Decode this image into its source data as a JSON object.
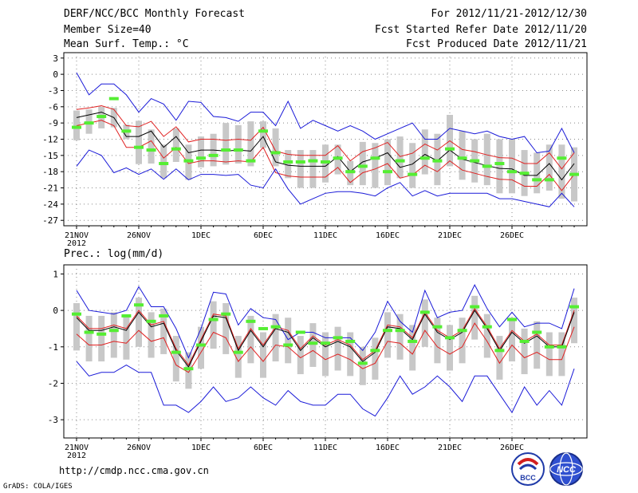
{
  "header": {
    "title": "DERF/NCC/BCC Monthly Forecast",
    "member_size": "Member Size=40",
    "variable": "Mean Surf. Temp.: °C",
    "period": "For 2012/11/21-2012/12/30",
    "start_date": "Fcst Started Refer Date 2012/11/20",
    "produced_date": "Fcst Produced Date 2012/11/21"
  },
  "footer": {
    "url": "http://cmdp.ncc.cma.gov.cn",
    "grads": "GrADS: COLA/IGES",
    "bcc_logo_text": "BCC",
    "ncc_logo_text": "NCC"
  },
  "colors": {
    "bar": "#c8c8c8",
    "mean": "#000000",
    "spread": "#e02020",
    "extreme": "#1a1ad8",
    "obs": "#55ee33",
    "grid": "#888888"
  },
  "chart_data": [
    {
      "type": "line",
      "title": "Mean Surf. Temp.: °C",
      "ylim": [
        -28,
        4
      ],
      "yticks": [
        3,
        0,
        -3,
        -6,
        -9,
        -12,
        -15,
        -18,
        -21,
        -24,
        -27
      ],
      "xticks": [
        {
          "label": "21NOV",
          "sub": "2012",
          "day": 0
        },
        {
          "label": "26NOV",
          "day": 5
        },
        {
          "label": "1DEC",
          "day": 10
        },
        {
          "label": "6DEC",
          "day": 15
        },
        {
          "label": "11DEC",
          "day": 20
        },
        {
          "label": "16DEC",
          "day": 25
        },
        {
          "label": "21DEC",
          "day": 30
        },
        {
          "label": "26DEC",
          "day": 35
        }
      ],
      "days": 40,
      "series": [
        {
          "name": "ensemble_max",
          "values": [
            0.3,
            -3.8,
            -1.8,
            -1.8,
            -3.8,
            -7,
            -4.5,
            -5.5,
            -8.5,
            -5,
            -5.2,
            -7.8,
            -8,
            -8.7,
            -7,
            -7,
            -9.5,
            -5,
            -10,
            -8.5,
            -9.5,
            -10.5,
            -9.5,
            -10.5,
            -12,
            -11,
            -10,
            -9,
            -12,
            -12,
            -10,
            -10.5,
            -11,
            -10.5,
            -11.5,
            -12,
            -11.5,
            -14.5,
            -14.2,
            -10,
            -14.5
          ]
        },
        {
          "name": "upper",
          "values": [
            -6.5,
            -6.2,
            -5.8,
            -6.5,
            -9.5,
            -9.7,
            -8.7,
            -11.5,
            -9.7,
            -12.5,
            -12,
            -12,
            -12.2,
            -12,
            -12.2,
            -9.8,
            -14.2,
            -14.8,
            -15,
            -15,
            -15,
            -13.2,
            -16,
            -14.3,
            -13.6,
            -12.6,
            -15.2,
            -14.6,
            -12.9,
            -14,
            -12.3,
            -13.9,
            -14.3,
            -14.9,
            -15.4,
            -15.5,
            -16.5,
            -16.5,
            -14.5,
            -17.5,
            -14.5
          ]
        },
        {
          "name": "mean",
          "values": [
            -8,
            -7.5,
            -7,
            -8,
            -11.5,
            -11.5,
            -10.5,
            -13.5,
            -11.5,
            -14.5,
            -14,
            -14,
            -14.2,
            -14,
            -14.2,
            -11.5,
            -16.2,
            -16.8,
            -17,
            -17,
            -17,
            -15.2,
            -18,
            -16.2,
            -15.5,
            -14.5,
            -17.2,
            -16.6,
            -14.8,
            -16,
            -14,
            -15.7,
            -16.3,
            -16.9,
            -17.4,
            -17.5,
            -18.7,
            -18.7,
            -16.5,
            -19.5,
            -16.5
          ]
        },
        {
          "name": "lower",
          "values": [
            -9.5,
            -9,
            -8.5,
            -9.5,
            -13.5,
            -13.5,
            -12.3,
            -15.5,
            -13.5,
            -16.5,
            -16,
            -16,
            -16.2,
            -16,
            -16.2,
            -13.5,
            -18.2,
            -18.8,
            -19,
            -19,
            -19,
            -17.2,
            -20,
            -18.2,
            -17.5,
            -16.5,
            -19.2,
            -18.6,
            -16.8,
            -18,
            -16,
            -17.7,
            -18.3,
            -18.9,
            -19.4,
            -19.5,
            -20.7,
            -20.7,
            -18.5,
            -21.5,
            -18.5
          ]
        },
        {
          "name": "ensemble_min",
          "values": [
            -17,
            -14,
            -15,
            -18.2,
            -17.3,
            -18.5,
            -17.5,
            -19.4,
            -17.5,
            -19.5,
            -18.5,
            -18.5,
            -18.7,
            -18.5,
            -20.5,
            -21,
            -17.5,
            -21.2,
            -24,
            -23,
            -22,
            -21.7,
            -21.7,
            -22,
            -22.5,
            -21,
            -20,
            -22.5,
            -21.5,
            -22.5,
            -22,
            -22,
            -22,
            -22,
            -23,
            -23,
            -23.5,
            -24,
            -24.5,
            -22,
            -24.5
          ]
        }
      ],
      "observed": [
        -9.8,
        -9,
        -7.8,
        -4.5,
        -10.5,
        -13.5,
        -14,
        -16.5,
        -13.8,
        -16,
        -15.5,
        -15,
        -14,
        -14,
        -16,
        -10.5,
        -14.5,
        -16.2,
        -16.2,
        -16,
        -16.2,
        -15.5,
        -18,
        -17,
        -15.5,
        -18,
        -16,
        -18.5,
        -15.5,
        -16,
        -13.8,
        -15.5,
        -16,
        -17,
        -16.5,
        -18,
        -18.3,
        -19.5,
        -19.5,
        -15.5,
        -18.5
      ],
      "bars": [
        [
          -12.2,
          -6.7
        ],
        [
          -11,
          -6.5
        ],
        [
          -10,
          -6
        ],
        [
          -9.8,
          -6.2
        ],
        [
          -12,
          -9.3
        ],
        [
          -16.6,
          -8.6
        ],
        [
          -16.5,
          -10.2
        ],
        [
          -19.2,
          -13
        ],
        [
          -16.2,
          -10
        ],
        [
          -19.5,
          -13
        ],
        [
          -17.2,
          -11.5
        ],
        [
          -17,
          -11
        ],
        [
          -16.7,
          -9
        ],
        [
          -16.5,
          -9.4
        ],
        [
          -17,
          -8.7
        ],
        [
          -13.6,
          -8.7
        ],
        [
          -17,
          -10
        ],
        [
          -19.2,
          -14
        ],
        [
          -21,
          -14
        ],
        [
          -21,
          -14
        ],
        [
          -20,
          -13
        ],
        [
          -18.5,
          -13
        ],
        [
          -20.5,
          -16
        ],
        [
          -20.5,
          -12.5
        ],
        [
          -21,
          -12.7
        ],
        [
          -20.5,
          -12
        ],
        [
          -19.2,
          -11.5
        ],
        [
          -21,
          -12.7
        ],
        [
          -18.5,
          -10.2
        ],
        [
          -20.5,
          -11
        ],
        [
          -17,
          -7.5
        ],
        [
          -19.5,
          -10.5
        ],
        [
          -20,
          -12
        ],
        [
          -20.5,
          -11
        ],
        [
          -22,
          -12
        ],
        [
          -22,
          -12
        ],
        [
          -22.5,
          -14
        ],
        [
          -22,
          -14.5
        ],
        [
          -21.5,
          -13
        ],
        [
          -23,
          -13
        ],
        [
          -23.5,
          -13.5
        ]
      ]
    },
    {
      "type": "line",
      "title": "Prec.: log(mm/d)",
      "ylim": [
        -3.5,
        1.25
      ],
      "yticks": [
        1,
        0,
        -1,
        -2,
        -3
      ],
      "xticks": [
        {
          "label": "21NOV",
          "sub": "2012",
          "day": 0
        },
        {
          "label": "26NOV",
          "day": 5
        },
        {
          "label": "1DEC",
          "day": 10
        },
        {
          "label": "6DEC",
          "day": 15
        },
        {
          "label": "11DEC",
          "day": 20
        },
        {
          "label": "16DEC",
          "day": 25
        },
        {
          "label": "21DEC",
          "day": 30
        },
        {
          "label": "26DEC",
          "day": 35
        }
      ],
      "days": 40,
      "series": [
        {
          "name": "ensemble_max",
          "values": [
            0.55,
            0,
            -0.05,
            -0.1,
            0,
            0.65,
            0.1,
            0.1,
            -0.5,
            -1.3,
            -0.5,
            0.5,
            0.45,
            -0.4,
            0.05,
            -0.2,
            -0.25,
            -0.8,
            -0.6,
            -0.6,
            -0.75,
            -0.75,
            -0.75,
            -1.1,
            -0.6,
            0.25,
            -0.3,
            -0.6,
            0.55,
            -0.2,
            -0.05,
            0,
            0.7,
            0.05,
            -0.45,
            -0.05,
            -0.45,
            -0.35,
            -0.35,
            -0.5,
            0.6
          ]
        },
        {
          "name": "upper",
          "values": [
            -0.15,
            -0.5,
            -0.5,
            -0.4,
            -0.5,
            0,
            -0.4,
            -0.3,
            -1.05,
            -1.5,
            -0.8,
            -0.1,
            -0.15,
            -1.05,
            -0.5,
            -0.95,
            -0.45,
            -0.55,
            -1.05,
            -0.7,
            -0.95,
            -0.8,
            -0.95,
            -1.35,
            -1.1,
            -0.4,
            -0.45,
            -0.75,
            -0.05,
            -0.55,
            -0.75,
            -0.55,
            0.05,
            -0.45,
            -1.05,
            -0.55,
            -0.85,
            -0.65,
            -0.95,
            -0.95,
            0
          ]
        },
        {
          "name": "mean",
          "values": [
            -0.2,
            -0.55,
            -0.55,
            -0.45,
            -0.55,
            -0.05,
            -0.45,
            -0.35,
            -1.1,
            -1.55,
            -0.85,
            -0.15,
            -0.2,
            -1.1,
            -0.55,
            -1.0,
            -0.5,
            -0.6,
            -1.1,
            -0.75,
            -1.0,
            -0.85,
            -1.0,
            -1.4,
            -1.15,
            -0.45,
            -0.5,
            -0.8,
            -0.1,
            -0.6,
            -0.8,
            -0.6,
            0,
            -0.5,
            -1.1,
            -0.6,
            -0.9,
            -0.7,
            -1.0,
            -1.0,
            -0.05
          ]
        },
        {
          "name": "lower",
          "values": [
            -0.65,
            -0.95,
            -0.95,
            -0.85,
            -0.9,
            -0.55,
            -0.85,
            -0.75,
            -1.5,
            -1.7,
            -1.15,
            -0.6,
            -0.75,
            -1.4,
            -1.0,
            -1.4,
            -0.95,
            -1.0,
            -1.3,
            -1.1,
            -1.35,
            -1.2,
            -1.35,
            -1.6,
            -1.45,
            -0.85,
            -0.9,
            -1.2,
            -0.55,
            -1.0,
            -1.2,
            -1.0,
            -0.35,
            -0.85,
            -1.45,
            -0.95,
            -1.3,
            -1.15,
            -1.35,
            -1.35,
            -0.45
          ]
        },
        {
          "name": "ensemble_min",
          "values": [
            -1.4,
            -1.8,
            -1.7,
            -1.7,
            -1.5,
            -1.7,
            -1.7,
            -2.6,
            -2.6,
            -2.8,
            -2.5,
            -2.1,
            -2.5,
            -2.4,
            -2.1,
            -2.4,
            -2.6,
            -2.2,
            -2.5,
            -2.6,
            -2.6,
            -2.3,
            -2.3,
            -2.7,
            -2.9,
            -2.4,
            -1.8,
            -2.3,
            -2.1,
            -1.8,
            -2.1,
            -2.5,
            -1.8,
            -1.8,
            -2.3,
            -2.8,
            -2.1,
            -2.6,
            -2.2,
            -2.6,
            -1.6
          ]
        }
      ],
      "observed": [
        -0.1,
        -0.6,
        -0.65,
        -0.55,
        -0.15,
        0.15,
        -0.3,
        -0.15,
        -1.15,
        -1.6,
        -0.95,
        -0.25,
        -0.1,
        -1.15,
        -0.3,
        -0.5,
        -0.45,
        -0.95,
        -0.6,
        -0.9,
        -0.9,
        -0.75,
        -0.85,
        -1.45,
        -1.1,
        -0.55,
        -0.55,
        -0.85,
        -0.05,
        -0.45,
        -0.75,
        -0.55,
        0.1,
        -0.45,
        -1.1,
        -0.25,
        -0.85,
        -0.6,
        -1.0,
        -1.0,
        0.1
      ]
    }
  ]
}
